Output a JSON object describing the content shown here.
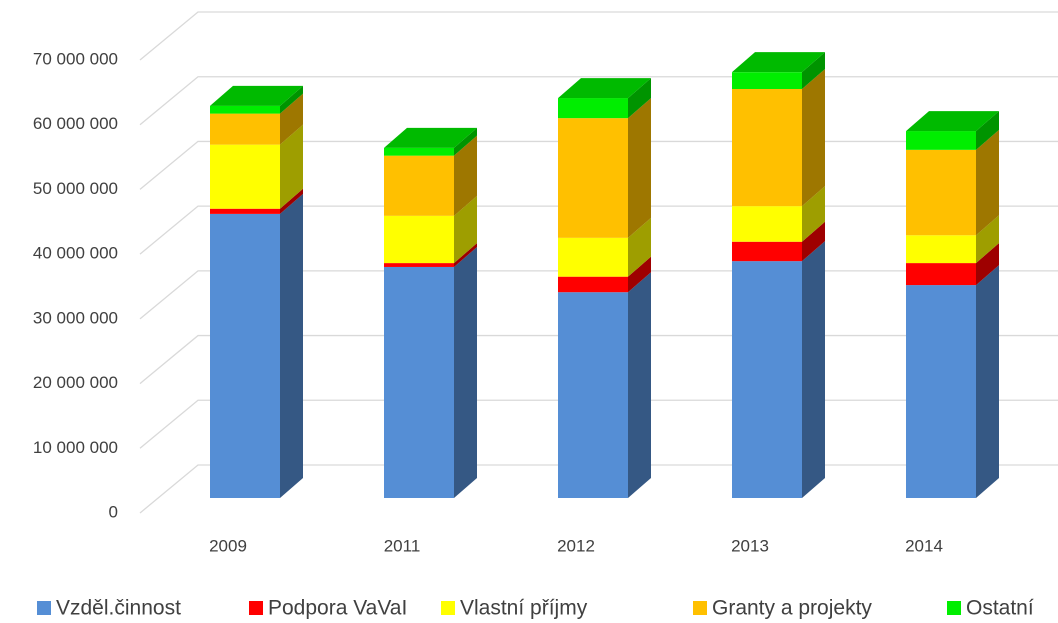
{
  "chart_data": {
    "type": "bar3d-stacked",
    "categories": [
      "2009",
      "2011",
      "2012",
      "2013",
      "2014"
    ],
    "series": [
      {
        "name": "Vzděl.činnost",
        "color": "#558ed5",
        "values": [
          43900000,
          35700000,
          31800000,
          36600000,
          32900000
        ]
      },
      {
        "name": "Podpora VaVaI",
        "color": "#ff0000",
        "values": [
          800000,
          600000,
          2400000,
          3000000,
          3400000
        ]
      },
      {
        "name": "Vlastní příjmy",
        "color": "#ffff00",
        "values": [
          9900000,
          7300000,
          6000000,
          5500000,
          4300000
        ]
      },
      {
        "name": "Granty a projekty",
        "color": "#ffc000",
        "values": [
          4800000,
          9300000,
          18500000,
          18100000,
          13200000
        ]
      },
      {
        "name": "Ostatní",
        "color": "#00ee00",
        "values": [
          1200000,
          1200000,
          3100000,
          2600000,
          2900000
        ]
      }
    ],
    "ylim": [
      0,
      70000000
    ],
    "yticks": [
      {
        "value": 0,
        "label": "0"
      },
      {
        "value": 10000000,
        "label": "10 000 000"
      },
      {
        "value": 20000000,
        "label": "20 000 000"
      },
      {
        "value": 30000000,
        "label": "30 000 000"
      },
      {
        "value": 40000000,
        "label": "40 000 000"
      },
      {
        "value": 50000000,
        "label": "50 000 000"
      },
      {
        "value": 60000000,
        "label": "60 000 000"
      },
      {
        "value": 70000000,
        "label": "70 000 000"
      }
    ],
    "grid": true,
    "legend": "bottom"
  }
}
